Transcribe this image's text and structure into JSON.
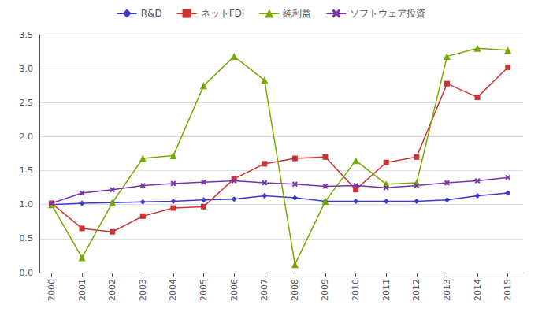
{
  "chart_data": {
    "type": "line",
    "x": [
      2000,
      2001,
      2002,
      2003,
      2004,
      2005,
      2006,
      2007,
      2008,
      2009,
      2010,
      2011,
      2012,
      2013,
      2014,
      2015
    ],
    "series": [
      {
        "name": "R&D",
        "color": "#3a3acc",
        "marker": "diamond",
        "line_style": "solid",
        "values": [
          1.0,
          1.02,
          1.03,
          1.04,
          1.05,
          1.07,
          1.08,
          1.13,
          1.1,
          1.05,
          1.05,
          1.05,
          1.05,
          1.07,
          1.13,
          1.17
        ]
      },
      {
        "name": "ネットFDI",
        "color": "#cc3333",
        "marker": "square",
        "line_style": "solid",
        "values": [
          1.02,
          0.65,
          0.6,
          0.83,
          0.95,
          0.97,
          1.38,
          1.6,
          1.68,
          1.7,
          1.22,
          1.62,
          1.7,
          2.78,
          2.58,
          3.02
        ]
      },
      {
        "name": "純利益",
        "color": "#77aa00",
        "marker": "triangle",
        "line_style": "solid",
        "values": [
          1.0,
          0.22,
          1.03,
          1.68,
          1.72,
          2.75,
          3.18,
          2.83,
          0.12,
          1.05,
          1.65,
          1.3,
          1.32,
          3.18,
          3.3,
          3.27
        ]
      },
      {
        "name": "ソフトウェア投資",
        "color": "#7733aa",
        "marker": "x",
        "line_style": "solid",
        "values": [
          1.02,
          1.17,
          1.22,
          1.28,
          1.31,
          1.33,
          1.35,
          1.32,
          1.3,
          1.27,
          1.28,
          1.25,
          1.28,
          1.32,
          1.35,
          1.4
        ]
      }
    ],
    "xlim": [
      1999.6,
      2015.5
    ],
    "xticks": [
      2000,
      2001,
      2002,
      2003,
      2004,
      2005,
      2006,
      2007,
      2008,
      2009,
      2010,
      2011,
      2012,
      2013,
      2014,
      2015
    ],
    "ylim": [
      0.0,
      3.5
    ],
    "yticks": [
      {
        "value": 0.0,
        "label": "0.0"
      },
      0.5,
      {
        "value": 1.0,
        "label": "1.0"
      },
      1.5,
      {
        "value": 2.0,
        "label": "2.0"
      },
      2.5,
      {
        "value": 3.0,
        "label": "3.0"
      },
      3.5
    ],
    "grid": true,
    "legend": "top"
  }
}
